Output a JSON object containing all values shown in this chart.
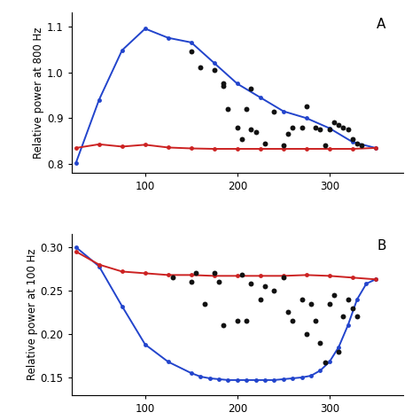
{
  "panel_A": {
    "title": "A",
    "ylabel": "Relative power at 800 Hz",
    "xlim": [
      20,
      380
    ],
    "ylim": [
      0.78,
      1.13
    ],
    "yticks": [
      0.8,
      0.9,
      1.0,
      1.1
    ],
    "xticks": [
      100,
      200,
      300
    ],
    "blue_x": [
      25,
      50,
      75,
      100,
      125,
      150,
      175,
      200,
      225,
      250,
      275,
      300,
      325,
      350
    ],
    "blue_y": [
      0.803,
      0.94,
      1.048,
      1.095,
      1.075,
      1.065,
      1.02,
      0.975,
      0.945,
      0.915,
      0.9,
      0.878,
      0.848,
      0.835
    ],
    "red_x": [
      25,
      50,
      75,
      100,
      125,
      150,
      175,
      200,
      225,
      250,
      275,
      300,
      325,
      350
    ],
    "red_y": [
      0.835,
      0.843,
      0.838,
      0.842,
      0.836,
      0.834,
      0.833,
      0.833,
      0.833,
      0.833,
      0.833,
      0.833,
      0.833,
      0.835
    ],
    "scatter_x": [
      150,
      160,
      175,
      185,
      185,
      190,
      200,
      205,
      210,
      215,
      215,
      220,
      230,
      240,
      250,
      255,
      260,
      270,
      275,
      285,
      290,
      295,
      300,
      305,
      310,
      315,
      320,
      325,
      330,
      335
    ],
    "scatter_y": [
      1.045,
      1.01,
      1.005,
      0.975,
      0.97,
      0.92,
      0.88,
      0.855,
      0.92,
      0.965,
      0.875,
      0.87,
      0.845,
      0.915,
      0.84,
      0.865,
      0.88,
      0.88,
      0.925,
      0.88,
      0.875,
      0.84,
      0.875,
      0.89,
      0.885,
      0.88,
      0.875,
      0.855,
      0.845,
      0.84
    ]
  },
  "panel_B": {
    "title": "B",
    "ylabel": "Relative power at 100 Hz",
    "xlim": [
      20,
      380
    ],
    "ylim": [
      0.13,
      0.315
    ],
    "yticks": [
      0.15,
      0.2,
      0.25,
      0.3
    ],
    "xticks": [
      100,
      200,
      300
    ],
    "blue_x": [
      25,
      50,
      75,
      100,
      125,
      150,
      160,
      170,
      180,
      190,
      200,
      210,
      220,
      230,
      240,
      250,
      260,
      270,
      280,
      290,
      300,
      310,
      320,
      330,
      340,
      350
    ],
    "blue_y": [
      0.3,
      0.278,
      0.232,
      0.188,
      0.168,
      0.155,
      0.151,
      0.149,
      0.148,
      0.147,
      0.147,
      0.147,
      0.147,
      0.147,
      0.147,
      0.148,
      0.149,
      0.15,
      0.152,
      0.158,
      0.168,
      0.185,
      0.21,
      0.24,
      0.258,
      0.263
    ],
    "red_x": [
      25,
      50,
      75,
      100,
      125,
      150,
      175,
      200,
      225,
      250,
      275,
      300,
      325,
      350
    ],
    "red_y": [
      0.295,
      0.28,
      0.272,
      0.27,
      0.268,
      0.268,
      0.267,
      0.267,
      0.267,
      0.267,
      0.268,
      0.267,
      0.265,
      0.263
    ],
    "scatter_x": [
      130,
      150,
      155,
      165,
      175,
      180,
      185,
      200,
      205,
      210,
      215,
      225,
      230,
      240,
      250,
      255,
      260,
      270,
      275,
      280,
      285,
      290,
      295,
      300,
      305,
      310,
      315,
      320,
      325,
      330
    ],
    "scatter_y": [
      0.265,
      0.26,
      0.27,
      0.235,
      0.27,
      0.26,
      0.21,
      0.215,
      0.268,
      0.215,
      0.258,
      0.24,
      0.255,
      0.25,
      0.265,
      0.225,
      0.215,
      0.24,
      0.2,
      0.235,
      0.215,
      0.19,
      0.167,
      0.235,
      0.245,
      0.18,
      0.22,
      0.24,
      0.23,
      0.22
    ]
  },
  "blue_color": "#2244CC",
  "red_color": "#CC2222",
  "scatter_color": "#111111",
  "line_width": 1.4,
  "marker_size": 3.5,
  "scatter_size": 18,
  "font_size": 8.5,
  "title_font_size": 11
}
